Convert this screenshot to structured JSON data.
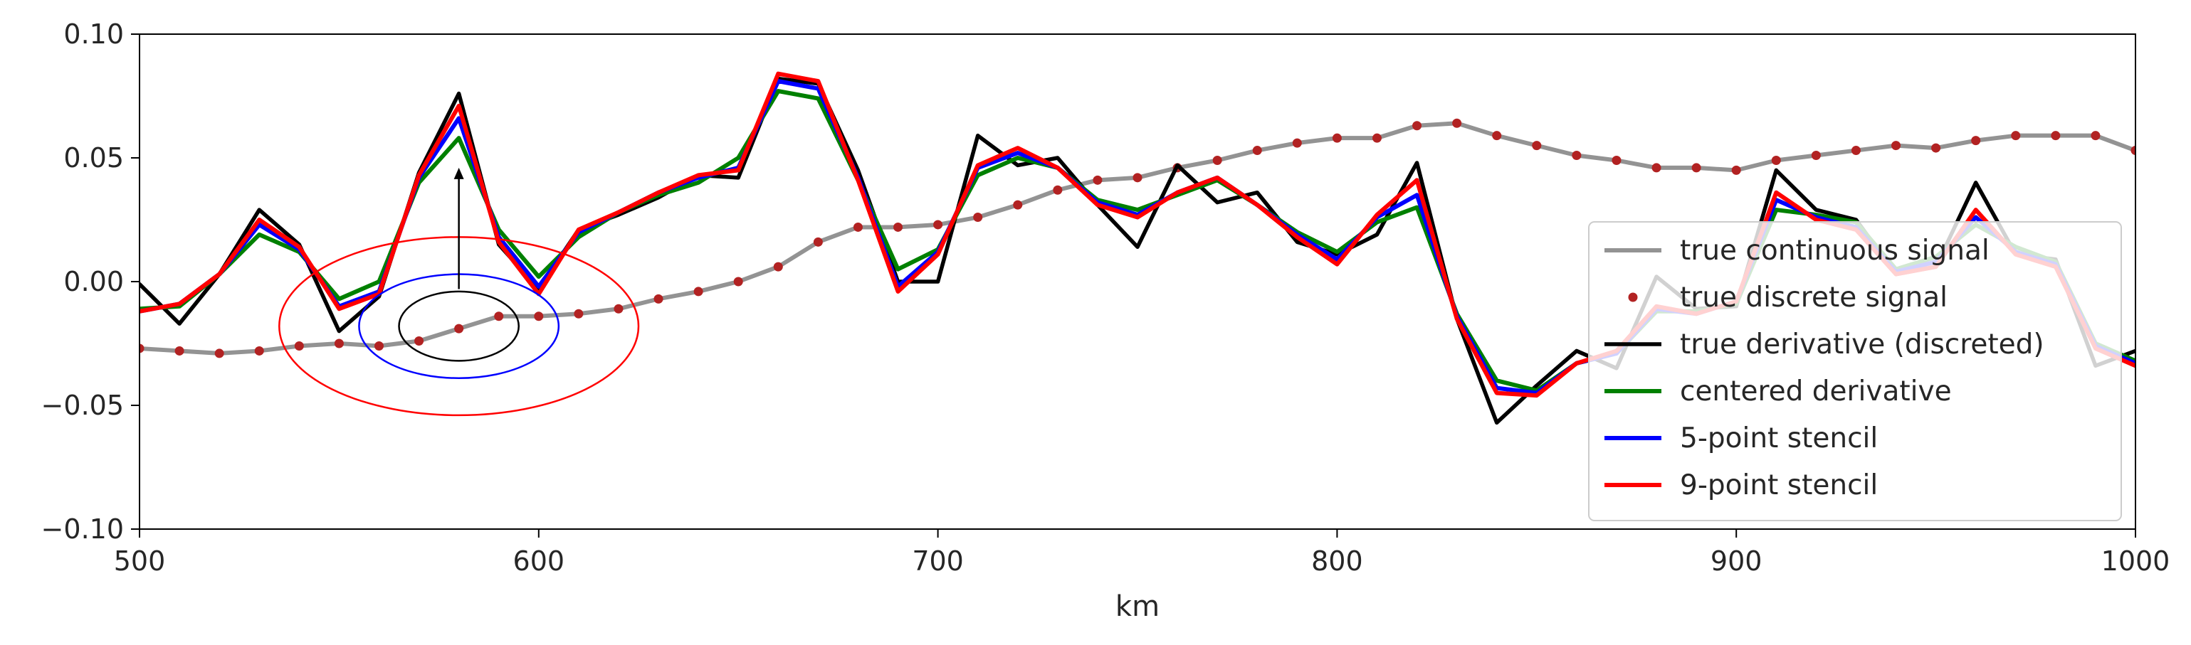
{
  "chart_data": {
    "type": "line",
    "title": "",
    "xlabel": "km",
    "ylabel": "",
    "xlim": [
      500,
      1000
    ],
    "ylim": [
      -0.1,
      0.1
    ],
    "grid": false,
    "legend_position": "right",
    "xticks": [
      "500",
      "600",
      "700",
      "800",
      "900",
      "1000"
    ],
    "yticks": [
      "0.10",
      "0.05",
      "0.00",
      "−0.05",
      "−0.10"
    ],
    "x": [
      500,
      510,
      520,
      530,
      540,
      550,
      560,
      570,
      580,
      590,
      600,
      610,
      620,
      630,
      640,
      650,
      660,
      670,
      680,
      690,
      700,
      710,
      720,
      730,
      740,
      750,
      760,
      770,
      780,
      790,
      800,
      810,
      820,
      830,
      840,
      850,
      860,
      870,
      880,
      890,
      900,
      910,
      920,
      930,
      940,
      950,
      960,
      970,
      980,
      990,
      1000
    ],
    "colors": {
      "true_continuous": "#808080",
      "true_discrete": "#b22222",
      "true_derivative": "#000000",
      "centered": "#008000",
      "five_point": "#0000ff",
      "nine_point": "#ff0000"
    },
    "series": [
      {
        "name": "true continuous signal",
        "style": "line",
        "color_key": "true_continuous",
        "values": [
          -0.027,
          -0.028,
          -0.029,
          -0.028,
          -0.026,
          -0.025,
          -0.026,
          -0.024,
          -0.019,
          -0.014,
          -0.014,
          -0.013,
          -0.011,
          -0.007,
          -0.004,
          0.0,
          0.006,
          0.016,
          0.022,
          0.022,
          0.023,
          0.026,
          0.031,
          0.037,
          0.041,
          0.042,
          0.046,
          0.049,
          0.053,
          0.056,
          0.058,
          0.058,
          0.063,
          0.064,
          0.059,
          0.055,
          0.051,
          0.049,
          0.046,
          0.046,
          0.045,
          0.049,
          0.051,
          0.053,
          0.055,
          0.054,
          0.057,
          0.059,
          0.059,
          0.059,
          0.053
        ]
      },
      {
        "name": "true discrete signal",
        "style": "dots",
        "color_key": "true_discrete",
        "values": [
          -0.027,
          -0.028,
          -0.029,
          -0.028,
          -0.026,
          -0.025,
          -0.026,
          -0.024,
          -0.019,
          -0.014,
          -0.014,
          -0.013,
          -0.011,
          -0.007,
          -0.004,
          0.0,
          0.006,
          0.016,
          0.022,
          0.022,
          0.023,
          0.026,
          0.031,
          0.037,
          0.041,
          0.042,
          0.046,
          0.049,
          0.053,
          0.056,
          0.058,
          0.058,
          0.063,
          0.064,
          0.059,
          0.055,
          0.051,
          0.049,
          0.046,
          0.046,
          0.045,
          0.049,
          0.051,
          0.053,
          0.055,
          0.054,
          0.057,
          0.059,
          0.059,
          0.059,
          0.053
        ]
      },
      {
        "name": "true derivative (discreted)",
        "style": "line",
        "color_key": "true_derivative",
        "values": [
          -0.001,
          -0.017,
          0.003,
          0.029,
          0.015,
          -0.02,
          -0.006,
          0.044,
          0.076,
          0.015,
          -0.003,
          0.021,
          0.027,
          0.034,
          0.043,
          0.042,
          0.082,
          0.08,
          0.045,
          0.0,
          0.0,
          0.059,
          0.047,
          0.05,
          0.031,
          0.014,
          0.047,
          0.032,
          0.036,
          0.016,
          0.011,
          0.019,
          0.048,
          -0.015,
          -0.057,
          -0.042,
          -0.028,
          -0.035,
          0.002,
          -0.011,
          -0.01,
          0.045,
          0.029,
          0.025,
          0.003,
          0.006,
          0.04,
          0.011,
          0.009,
          -0.034,
          -0.028
        ]
      },
      {
        "name": "centered derivative",
        "style": "line",
        "color_key": "centered",
        "values": [
          -0.011,
          -0.01,
          0.003,
          0.019,
          0.012,
          -0.007,
          0.0,
          0.04,
          0.058,
          0.021,
          0.002,
          0.018,
          0.028,
          0.035,
          0.04,
          0.05,
          0.077,
          0.074,
          0.041,
          0.005,
          0.013,
          0.043,
          0.05,
          0.046,
          0.033,
          0.029,
          0.035,
          0.041,
          0.031,
          0.02,
          0.012,
          0.024,
          0.03,
          -0.013,
          -0.04,
          -0.044,
          -0.033,
          -0.029,
          -0.012,
          -0.012,
          -0.009,
          0.029,
          0.027,
          0.024,
          0.005,
          0.01,
          0.023,
          0.014,
          0.008,
          -0.025,
          -0.032
        ]
      },
      {
        "name": "5-point stencil",
        "style": "line",
        "color_key": "five_point",
        "values": [
          -0.012,
          -0.009,
          0.003,
          0.023,
          0.013,
          -0.01,
          -0.004,
          0.042,
          0.066,
          0.018,
          -0.002,
          0.02,
          0.028,
          0.036,
          0.042,
          0.046,
          0.081,
          0.078,
          0.042,
          -0.002,
          0.012,
          0.046,
          0.052,
          0.046,
          0.032,
          0.027,
          0.036,
          0.042,
          0.031,
          0.019,
          0.009,
          0.026,
          0.035,
          -0.014,
          -0.043,
          -0.045,
          -0.033,
          -0.029,
          -0.011,
          -0.013,
          -0.008,
          0.033,
          0.026,
          0.022,
          0.004,
          0.008,
          0.026,
          0.012,
          0.007,
          -0.026,
          -0.033
        ]
      },
      {
        "name": "9-point stencil",
        "style": "line",
        "color_key": "nine_point",
        "values": [
          -0.012,
          -0.009,
          0.003,
          0.025,
          0.014,
          -0.011,
          -0.005,
          0.043,
          0.071,
          0.016,
          -0.005,
          0.021,
          0.028,
          0.036,
          0.043,
          0.045,
          0.084,
          0.081,
          0.041,
          -0.004,
          0.011,
          0.047,
          0.054,
          0.046,
          0.031,
          0.026,
          0.036,
          0.042,
          0.031,
          0.018,
          0.007,
          0.027,
          0.041,
          -0.015,
          -0.045,
          -0.046,
          -0.033,
          -0.028,
          -0.01,
          -0.013,
          -0.008,
          0.036,
          0.025,
          0.021,
          0.003,
          0.006,
          0.029,
          0.011,
          0.006,
          -0.027,
          -0.034
        ]
      }
    ],
    "annotations": [
      {
        "type": "ellipse",
        "color": "#ff0000",
        "center": [
          580,
          -0.018
        ],
        "half_width_km": 45,
        "half_height": 0.036
      },
      {
        "type": "ellipse",
        "color": "#0000ff",
        "center": [
          580,
          -0.018
        ],
        "half_width_km": 25,
        "half_height": 0.021
      },
      {
        "type": "ellipse",
        "color": "#000000",
        "center": [
          580,
          -0.018
        ],
        "half_width_km": 15,
        "half_height": 0.014
      },
      {
        "type": "arrow",
        "color": "#000000",
        "from": [
          580,
          -0.003
        ],
        "to": [
          580,
          0.046
        ]
      }
    ]
  }
}
